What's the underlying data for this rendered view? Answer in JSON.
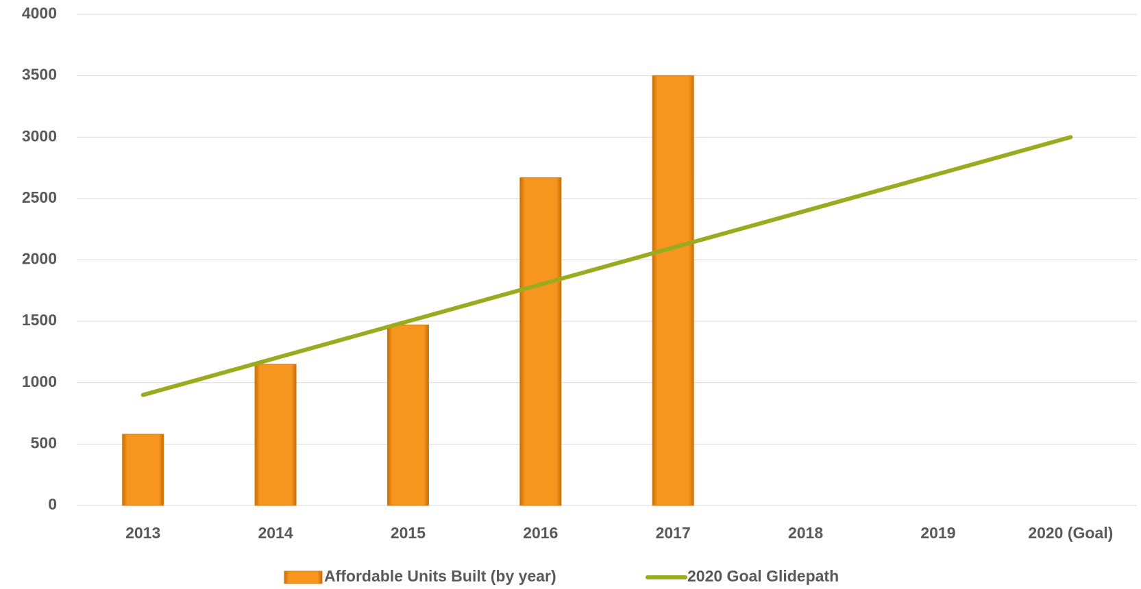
{
  "chart_data": {
    "type": "combo",
    "categories": [
      "2013",
      "2014",
      "2015",
      "2016",
      "2017",
      "2018",
      "2019",
      "2020 (Goal)"
    ],
    "series": [
      {
        "name": "Affordable Units Built (by year)",
        "type": "bar",
        "color": "#f7961e",
        "values": [
          580,
          1150,
          1470,
          2670,
          3500,
          null,
          null,
          null
        ]
      },
      {
        "name": "2020 Goal Glidepath",
        "type": "line",
        "color": "#9aab1f",
        "values": [
          900,
          1200,
          1500,
          1800,
          2100,
          2400,
          2700,
          3000
        ]
      }
    ],
    "ylim": [
      0,
      4000
    ],
    "yticks": [
      0,
      500,
      1000,
      1500,
      2000,
      2500,
      3000,
      3500,
      4000
    ],
    "grid": true,
    "legend": "bottom"
  }
}
